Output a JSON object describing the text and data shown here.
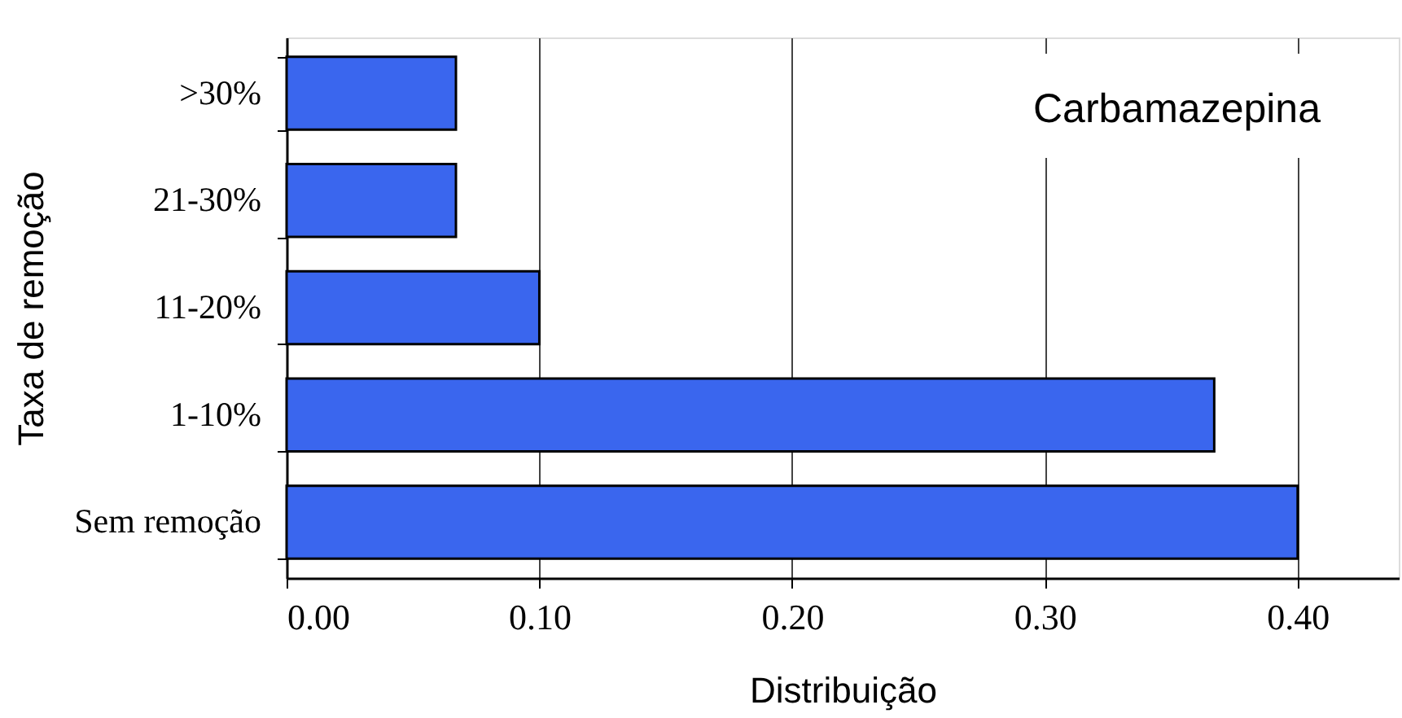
{
  "chart_data": {
    "type": "bar",
    "orientation": "horizontal",
    "categories": [
      ">30%",
      "21-30%",
      "11-20%",
      "1-10%",
      "Sem remoção"
    ],
    "values": [
      0.067,
      0.067,
      0.1,
      0.367,
      0.4
    ],
    "color": "#3a66ee",
    "xlim": [
      0,
      0.44
    ],
    "xticks": [
      {
        "value": 0,
        "label": "0.00"
      },
      {
        "value": 0.1,
        "label": "0.10"
      },
      {
        "value": 0.2,
        "label": "0.20"
      },
      {
        "value": 0.3,
        "label": "0.30"
      },
      {
        "value": 0.4,
        "label": "0.40"
      }
    ],
    "xlabel": "Distribuição",
    "ylabel": "Taxa de remoção",
    "annotations": [
      "Carbamazepina"
    ],
    "grid": "x"
  }
}
